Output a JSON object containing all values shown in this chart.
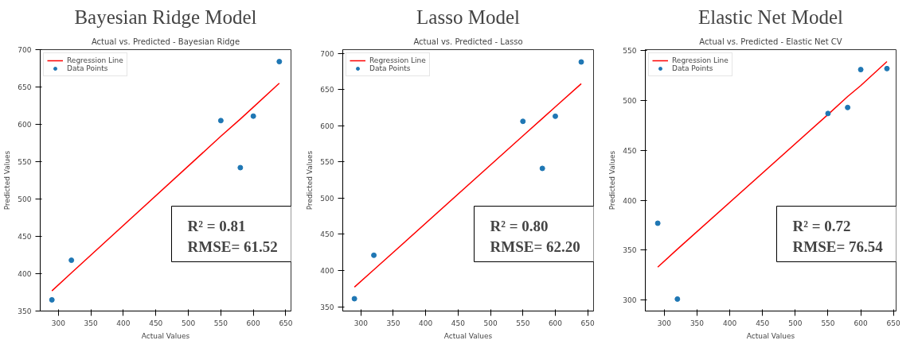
{
  "chart_data": [
    {
      "type": "scatter",
      "title": "Bayesian Ridge Model",
      "subtitle": "Actual vs. Predicted - Bayesian Ridge",
      "xlabel": "Actual Values",
      "ylabel": "Predicted Values",
      "xlim": [
        272,
        658
      ],
      "ylim": [
        350,
        700
      ],
      "xticks": [
        300,
        350,
        400,
        450,
        500,
        550,
        600,
        650
      ],
      "yticks": [
        350,
        400,
        450,
        500,
        550,
        600,
        650,
        700
      ],
      "x": [
        290,
        320,
        550,
        580,
        600,
        640
      ],
      "series": [
        {
          "name": "Regression Line",
          "type": "line",
          "color": "#ff0000",
          "values": [
            377,
            401,
            584,
            607,
            623,
            655
          ]
        },
        {
          "name": "Data Points",
          "color": "#1f77b4",
          "marker": "circle",
          "values": [
            365,
            418,
            605,
            542,
            611,
            684
          ]
        }
      ],
      "annotations": [
        "R² = 0.81",
        "RMSE= 61.52"
      ],
      "legend": "top left",
      "grid": false,
      "line_style": "solid"
    },
    {
      "type": "scatter",
      "title": "Lasso Model",
      "subtitle": "Actual vs. Predicted - Lasso",
      "xlabel": "Actual Values",
      "ylabel": "Predicted Values",
      "xlim": [
        272,
        659
      ],
      "ylim": [
        344,
        705
      ],
      "xticks": [
        300,
        350,
        400,
        450,
        500,
        550,
        600,
        650
      ],
      "yticks": [
        350,
        400,
        450,
        500,
        550,
        600,
        650,
        700
      ],
      "x": [
        290,
        320,
        550,
        580,
        600,
        640
      ],
      "series": [
        {
          "name": "Regression Line",
          "type": "line",
          "color": "#ff0000",
          "values": [
            377,
            401,
            586,
            610,
            626,
            658
          ]
        },
        {
          "name": "Data Points",
          "color": "#1f77b4",
          "marker": "circle",
          "values": [
            361,
            421,
            606,
            541,
            613,
            688
          ]
        }
      ],
      "annotations": [
        "R² = 0.80",
        "RMSE= 62.20"
      ],
      "legend": "top left",
      "grid": false,
      "line_style": "solid"
    },
    {
      "type": "scatter",
      "title": "Elastic Net Model",
      "subtitle": "Actual vs. Predicted - Elastic Net CV",
      "xlabel": "Actual Values",
      "ylabel": "Predicted Values",
      "xlim": [
        271,
        654
      ],
      "ylim": [
        289,
        551
      ],
      "xticks": [
        300,
        350,
        400,
        450,
        500,
        550,
        600,
        650
      ],
      "yticks": [
        300,
        350,
        400,
        450,
        500,
        550
      ],
      "x": [
        290,
        320,
        550,
        580,
        600,
        640
      ],
      "series": [
        {
          "name": "Regression Line",
          "type": "line",
          "color": "#ff0000",
          "values": [
            333,
            351,
            486,
            504,
            515,
            539
          ]
        },
        {
          "name": "Data Points",
          "color": "#1f77b4",
          "marker": "circle",
          "values": [
            377,
            301,
            487,
            493,
            531,
            532
          ]
        }
      ],
      "annotations": [
        "R² = 0.72",
        "RMSE= 76.54"
      ],
      "legend": "top left",
      "grid": false,
      "line_style": "solid"
    }
  ]
}
